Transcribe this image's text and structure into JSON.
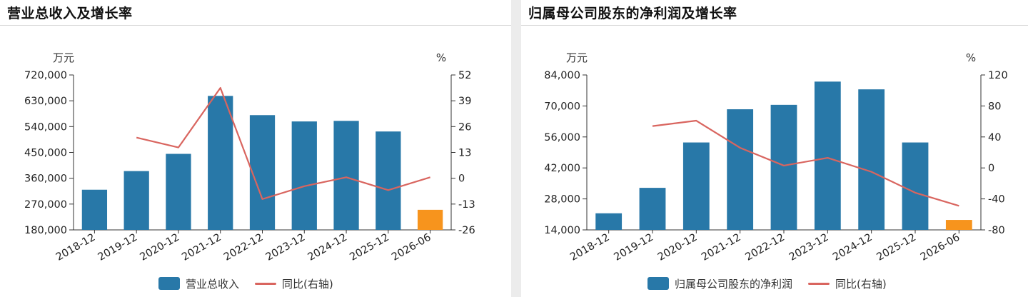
{
  "colors": {
    "bar": "#2878a8",
    "forecast_bar": "#f7941d",
    "line": "#d9655f"
  },
  "panels": [
    {
      "title": "营业总收入及增长率",
      "chart_data": {
        "type": "bar",
        "title": "营业总收入及增长率",
        "categories": [
          "2018-12",
          "2019-12",
          "2020-12",
          "2021-12",
          "2022-12",
          "2023-12",
          "2024-12",
          "2025-12",
          "2026-06"
        ],
        "series": [
          {
            "name": "营业总收入",
            "type": "bar",
            "axis": "left",
            "values": [
              320000,
              385000,
              445000,
              647000,
              580000,
              558000,
              560000,
              523000,
              250000
            ],
            "highlight_last": true
          },
          {
            "name": "同比(右轴)",
            "type": "line",
            "axis": "right",
            "values": [
              null,
              20.5,
              15.5,
              45.5,
              -10.5,
              -4,
              0.5,
              -6,
              0.5
            ]
          }
        ],
        "ylabel_left": "万元",
        "ylabel_right": "%",
        "ylim_left": [
          180000,
          720000
        ],
        "ylim_right": [
          -26,
          52
        ],
        "yticks_left": [
          "720,000",
          "630,000",
          "540,000",
          "450,000",
          "360,000",
          "270,000",
          "180,000"
        ],
        "yticks_right": [
          "52",
          "39",
          "26",
          "13",
          "0",
          "-13",
          "-26"
        ],
        "legend": [
          "营业总收入",
          "同比(右轴)"
        ],
        "legend_position": "bottom-center",
        "grid": false
      }
    },
    {
      "title": "归属母公司股东的净利润及增长率",
      "chart_data": {
        "type": "bar",
        "title": "归属母公司股东的净利润及增长率",
        "categories": [
          "2018-12",
          "2019-12",
          "2020-12",
          "2021-12",
          "2022-12",
          "2023-12",
          "2024-12",
          "2025-12",
          "2026-06"
        ],
        "series": [
          {
            "name": "归属母公司股东的净利润",
            "type": "bar",
            "axis": "left",
            "values": [
              21500,
              33000,
              53500,
              68500,
              70500,
              81000,
              77500,
              53500,
              18500
            ],
            "highlight_last": true
          },
          {
            "name": "同比(右轴)",
            "type": "line",
            "axis": "right",
            "values": [
              null,
              54,
              61,
              26,
              3,
              13,
              -5,
              -32,
              -49
            ]
          }
        ],
        "ylabel_left": "万元",
        "ylabel_right": "%",
        "ylim_left": [
          14000,
          84000
        ],
        "ylim_right": [
          -80,
          120
        ],
        "yticks_left": [
          "84,000",
          "70,000",
          "56,000",
          "42,000",
          "28,000",
          "14,000"
        ],
        "yticks_right": [
          "120",
          "80",
          "40",
          "0",
          "-40",
          "-80"
        ],
        "legend": [
          "归属母公司股东的净利润",
          "同比(右轴)"
        ],
        "legend_position": "bottom-center",
        "grid": false
      }
    }
  ]
}
